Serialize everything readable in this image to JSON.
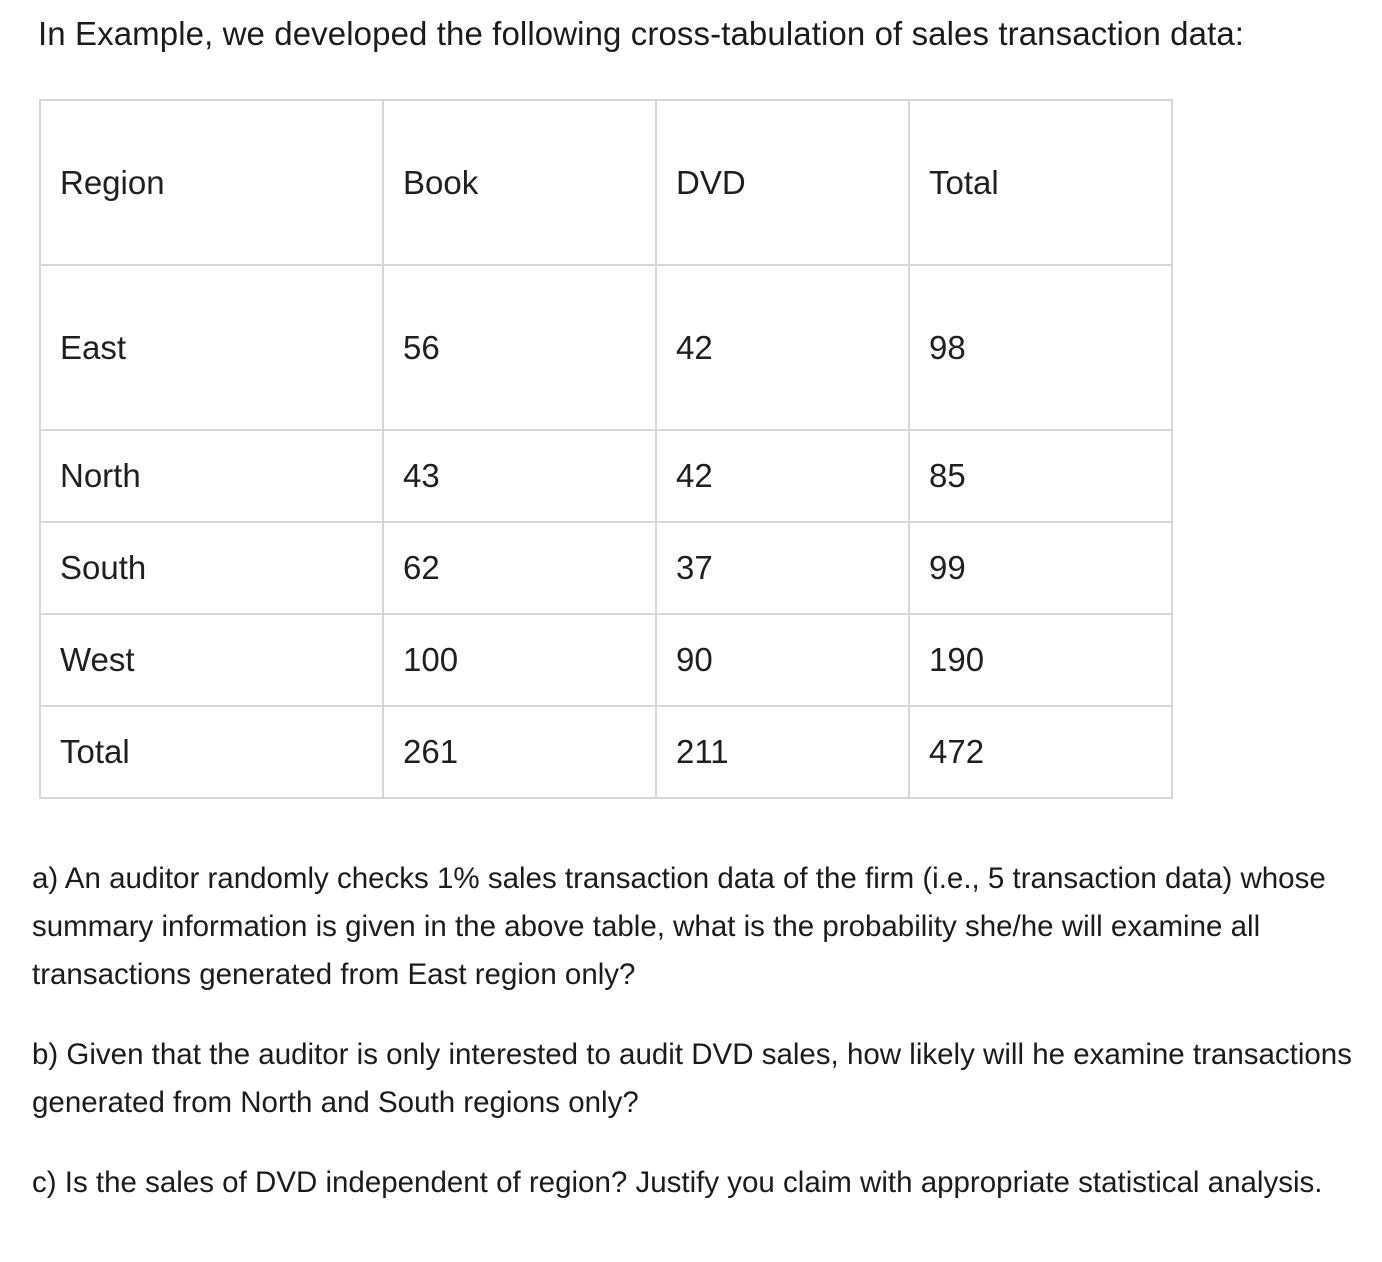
{
  "intro": "In Example, we developed the following cross-tabulation of sales transaction data:",
  "table": {
    "header": [
      "Region",
      "Book",
      "DVD",
      "Total"
    ],
    "rows": [
      [
        "East",
        "56",
        "42",
        "98"
      ],
      [
        "North",
        "43",
        "42",
        "85"
      ],
      [
        "South",
        "62",
        "37",
        "99"
      ],
      [
        "West",
        "100",
        "90",
        "190"
      ],
      [
        "Total",
        "261",
        "211",
        "472"
      ]
    ]
  },
  "questions": {
    "a": "a) An auditor randomly checks 1% sales transaction data of the firm (i.e., 5 transaction data) whose summary information is given in the above table, what is the probability she/he will examine all transactions generated from East region only?",
    "b": "b) Given that the auditor is only interested to audit DVD sales, how likely will he examine transactions generated from North and South regions only?",
    "c": "c) Is the sales of DVD independent of region? Justify you claim with appropriate statistical analysis."
  }
}
